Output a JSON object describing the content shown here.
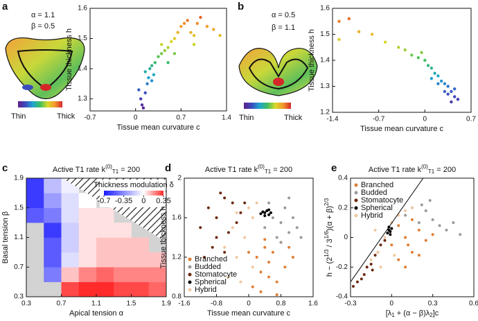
{
  "figure": {
    "panel_letters": [
      "a",
      "b",
      "c",
      "d",
      "e"
    ],
    "diagrams": [
      {
        "alpha": "α = 1.1",
        "beta": "β = 0.5",
        "thin": "Thin",
        "thick": "Thick"
      },
      {
        "alpha": "α = 0.5",
        "beta": "β = 1.1",
        "thin": "Thin",
        "thick": "Thick"
      }
    ]
  },
  "chart_data": [
    {
      "type": "scatter",
      "x_label": "Tissue mean curvature c",
      "y_label": "Tissue thickness h",
      "color_by": "y",
      "colormap": [
        "#5e1f8a",
        "#3b4cc0",
        "#1fa3d1",
        "#3fbf5f",
        "#d9d928",
        "#f29a2e",
        "#d62728"
      ],
      "x": [
        0.05,
        0.08,
        0.1,
        0.12,
        0.15,
        0.18,
        0.2,
        0.15,
        0.22,
        0.25,
        0.3,
        0.28,
        0.35,
        0.4,
        0.45,
        0.5,
        0.55,
        0.6,
        0.65,
        0.7,
        0.75,
        0.8,
        0.85,
        0.9,
        0.95,
        1.0,
        1.1,
        1.2,
        1.3,
        0.6,
        0.5,
        0.4,
        0.9,
        0.25
      ],
      "y": [
        1.33,
        1.3,
        1.28,
        1.27,
        1.32,
        1.35,
        1.37,
        1.39,
        1.4,
        1.41,
        1.42,
        1.38,
        1.44,
        1.45,
        1.46,
        1.47,
        1.49,
        1.5,
        1.52,
        1.54,
        1.55,
        1.56,
        1.52,
        1.51,
        1.55,
        1.57,
        1.54,
        1.53,
        1.51,
        1.45,
        1.42,
        1.48,
        1.48,
        1.36
      ],
      "xlim": [
        -0.7,
        1.4
      ],
      "ylim": [
        1.26,
        1.6
      ],
      "xticks": [
        -0.7,
        0,
        0.7,
        1.4
      ],
      "yticks": [
        1.3,
        1.4,
        1.5,
        1.6
      ]
    },
    {
      "type": "scatter",
      "x_label": "Tissue mean curvature c",
      "y_label": "Tissue thickness h",
      "color_by": "y",
      "colormap": [
        "#5e1f8a",
        "#3b4cc0",
        "#1fa3d1",
        "#3fbf5f",
        "#d9d928",
        "#f29a2e",
        "#d62728"
      ],
      "x": [
        -1.3,
        -1.15,
        -1.3,
        -1.0,
        -0.8,
        -0.6,
        -0.4,
        -0.3,
        -0.2,
        -0.1,
        0.0,
        0.05,
        0.1,
        0.15,
        0.2,
        0.25,
        0.3,
        0.35,
        0.4,
        0.45,
        0.5,
        0.3,
        0.2,
        0.4,
        0.1,
        -0.05,
        0.35,
        0.45
      ],
      "y": [
        1.55,
        1.56,
        1.48,
        1.51,
        1.5,
        1.47,
        1.45,
        1.44,
        1.42,
        1.41,
        1.4,
        1.38,
        1.37,
        1.35,
        1.34,
        1.32,
        1.31,
        1.3,
        1.28,
        1.26,
        1.25,
        1.28,
        1.31,
        1.24,
        1.33,
        1.43,
        1.27,
        1.29
      ],
      "xlim": [
        -1.4,
        0.7
      ],
      "ylim": [
        1.2,
        1.6
      ],
      "xticks": [
        -1.4,
        -0.7,
        0,
        0.7
      ],
      "yticks": [
        1.2,
        1.3,
        1.4,
        1.5,
        1.6
      ]
    },
    {
      "type": "heatmap",
      "title": [
        {
          "t": "Active T1 rate "
        },
        {
          "t": "k"
        },
        {
          "t": "(0)",
          "s": "sup"
        },
        {
          "t": "T1",
          "s": "sub"
        },
        {
          "t": " = 200"
        }
      ],
      "x_label": "Apical tension α",
      "y_label": "Basal tension β",
      "xbins": [
        0.3,
        0.5,
        0.7,
        0.9,
        1.1,
        1.3,
        1.5,
        1.7,
        1.9
      ],
      "ybins": [
        0.3,
        0.5,
        0.7,
        0.9,
        1.1,
        1.3,
        1.5,
        1.7,
        1.9
      ],
      "z": [
        [
          null,
          null,
          0.3,
          0.35,
          0.35,
          0.3,
          0.3,
          0.25
        ],
        [
          null,
          -0.4,
          0.1,
          0.2,
          0.25,
          0.2,
          0.2,
          0.2
        ],
        [
          null,
          -0.5,
          -0.1,
          0.05,
          0.1,
          0.1,
          0.1,
          0.1
        ],
        [
          null,
          -0.5,
          -0.15,
          0.05,
          0.1,
          0.1,
          0.1,
          null
        ],
        [
          null,
          -0.6,
          -0.15,
          0.05,
          0.05,
          0.05,
          null,
          null
        ],
        [
          -0.5,
          -0.4,
          -0.1,
          0.05,
          0.05,
          null,
          null,
          null
        ],
        [
          -0.6,
          -0.3,
          -0.1,
          0.0,
          null,
          null,
          null,
          null
        ],
        [
          -0.6,
          -0.2,
          -0.05,
          null,
          null,
          null,
          null,
          null
        ]
      ],
      "xlim": [
        0.3,
        1.9
      ],
      "ylim": [
        0.3,
        1.9
      ],
      "xticks": [
        0.3,
        0.7,
        1.1,
        1.5,
        1.9
      ],
      "yticks": [
        0.3,
        0.7,
        1.1,
        1.5,
        1.9
      ],
      "null_color": "#d3d3d3",
      "colorbar": {
        "label": "Thickness modulation δ",
        "clim": [
          -0.7,
          0.35
        ],
        "ticks": [
          -0.7,
          -0.35,
          0,
          0.35
        ],
        "colors": [
          "#1a1aff",
          "#ffffff",
          "#ff2a2a"
        ]
      }
    },
    {
      "type": "scatter",
      "title": [
        {
          "t": "Active T1 rate "
        },
        {
          "t": "k"
        },
        {
          "t": "(0)",
          "s": "sup"
        },
        {
          "t": "T1",
          "s": "sub"
        },
        {
          "t": " = 200"
        }
      ],
      "x_label": "Tissue mean curvature c",
      "y_label": "Tissue thickness h",
      "legend": "lower left",
      "series": [
        {
          "name": "Branched",
          "color": "#e07e34",
          "x": [
            0.1,
            0.3,
            0.5,
            0.7,
            0.9,
            1.1,
            0.2,
            0.4,
            0.6,
            0.8,
            1.0,
            0.3,
            0.5,
            0.7,
            0.0,
            0.4
          ],
          "y": [
            0.9,
            0.85,
            1.0,
            0.95,
            1.1,
            1.2,
            1.2,
            1.3,
            1.25,
            1.35,
            1.3,
            1.05,
            1.15,
            0.82,
            1.25,
            1.38
          ]
        },
        {
          "name": "Budded",
          "color": "#9a9a9a",
          "x": [
            0.4,
            0.6,
            0.8,
            1.0,
            1.2,
            0.7,
            0.9,
            1.1,
            0.5,
            1.3,
            1.0,
            0.8
          ],
          "y": [
            1.5,
            1.6,
            1.55,
            1.45,
            1.5,
            1.4,
            1.7,
            1.6,
            1.75,
            1.4,
            1.8,
            1.35
          ]
        },
        {
          "name": "Stomatocyte",
          "color": "#6b2a10",
          "x": [
            -1.2,
            -1.0,
            -0.8,
            -0.6,
            -0.4,
            -0.2,
            -0.9,
            -0.7,
            -0.5,
            -0.3,
            -1.1,
            -0.1,
            -0.6,
            -0.8
          ],
          "y": [
            1.5,
            1.7,
            1.6,
            1.8,
            1.75,
            1.65,
            1.3,
            1.85,
            1.45,
            1.55,
            1.2,
            1.75,
            1.25,
            1.4
          ]
        },
        {
          "name": "Spherical",
          "color": "#000000",
          "x": [
            0.3,
            0.35,
            0.4,
            0.45,
            0.5,
            0.55,
            0.4,
            0.5
          ],
          "y": [
            1.64,
            1.66,
            1.65,
            1.67,
            1.63,
            1.65,
            1.62,
            1.68
          ]
        },
        {
          "name": "Hybrid",
          "color": "#f0c8a0",
          "x": [
            -0.5,
            -0.3,
            -0.1,
            0.1,
            -0.4,
            -0.2,
            0.0,
            0.2,
            -0.6,
            -0.3,
            0.1
          ],
          "y": [
            1.0,
            1.2,
            1.4,
            1.6,
            1.5,
            0.95,
            1.7,
            1.75,
            1.3,
            1.65,
            1.1
          ]
        }
      ],
      "xlim": [
        -1.6,
        1.6
      ],
      "ylim": [
        0.8,
        2
      ],
      "xticks": [
        -1.6,
        -0.8,
        0,
        0.8,
        1.6
      ],
      "yticks": [
        0.8,
        1.2,
        1.6,
        2
      ]
    },
    {
      "type": "scatter",
      "title": [
        {
          "t": "Active T1 rate "
        },
        {
          "t": "k"
        },
        {
          "t": "(0)",
          "s": "sup"
        },
        {
          "t": "T1",
          "s": "sub"
        },
        {
          "t": " = 200"
        }
      ],
      "x_label": [
        {
          "t": "[λ"
        },
        {
          "t": "1",
          "s": "sub"
        },
        {
          "t": " + (α − β)λ"
        },
        {
          "t": "2",
          "s": "sub"
        },
        {
          "t": "]c"
        }
      ],
      "y_label": [
        {
          "t": "h − (2"
        },
        {
          "t": "1/3",
          "s": "sup"
        },
        {
          "t": " / 3"
        },
        {
          "t": "1/6",
          "s": "sup"
        },
        {
          "t": ")(α + β)"
        },
        {
          "t": "2/3",
          "s": "sup"
        }
      ],
      "legend": "upper left",
      "series": [
        {
          "name": "Branched",
          "color": "#e07e34",
          "x": [
            0.0,
            0.05,
            0.1,
            0.15,
            0.2,
            0.25,
            0.05,
            0.1,
            0.2,
            0.3,
            0.15,
            0.12
          ],
          "y": [
            -0.05,
            -0.15,
            0.0,
            -0.1,
            0.05,
            -0.02,
            0.08,
            -0.2,
            -0.12,
            0.02,
            0.12,
            -0.05
          ]
        },
        {
          "name": "Budded",
          "color": "#9a9a9a",
          "x": [
            0.1,
            0.15,
            0.2,
            0.25,
            0.3,
            0.35,
            0.4,
            0.45,
            0.5,
            0.22,
            0.28
          ],
          "y": [
            0.15,
            0.2,
            0.1,
            0.18,
            0.12,
            0.08,
            0.05,
            0.1,
            0.02,
            0.22,
            0.25
          ]
        },
        {
          "name": "Stomatocyte",
          "color": "#6b2a10",
          "x": [
            -0.28,
            -0.25,
            -0.2,
            -0.18,
            -0.15,
            -0.12,
            -0.1,
            -0.08,
            -0.22,
            -0.05,
            -0.14
          ],
          "y": [
            -0.33,
            -0.3,
            -0.25,
            -0.2,
            -0.18,
            -0.12,
            -0.1,
            -0.05,
            -0.28,
            -0.02,
            -0.22
          ]
        },
        {
          "name": "Spherical",
          "color": "#000000",
          "x": [
            -0.03,
            -0.02,
            -0.01,
            0.0,
            -0.02,
            -0.01
          ],
          "y": [
            0.03,
            0.05,
            0.04,
            0.06,
            0.07,
            0.02
          ]
        },
        {
          "name": "Hybrid",
          "color": "#f0c8a0",
          "x": [
            -0.15,
            -0.1,
            -0.05,
            0.0,
            0.05,
            -0.08,
            0.1,
            0.15,
            -0.12,
            0.02
          ],
          "y": [
            -0.15,
            -0.1,
            0.0,
            0.1,
            0.15,
            -0.2,
            0.18,
            0.2,
            0.05,
            -0.12
          ]
        }
      ],
      "line": {
        "x": [
          -0.3,
          0.23
        ],
        "y": [
          -0.3,
          0.4
        ],
        "color": "#000000"
      },
      "xlim": [
        -0.3,
        0.6
      ],
      "ylim": [
        -0.4,
        0.4
      ],
      "xticks": [
        -0.3,
        0,
        0.3,
        0.6
      ],
      "yticks": [
        -0.4,
        -0.2,
        0,
        0.2,
        0.4
      ]
    }
  ]
}
